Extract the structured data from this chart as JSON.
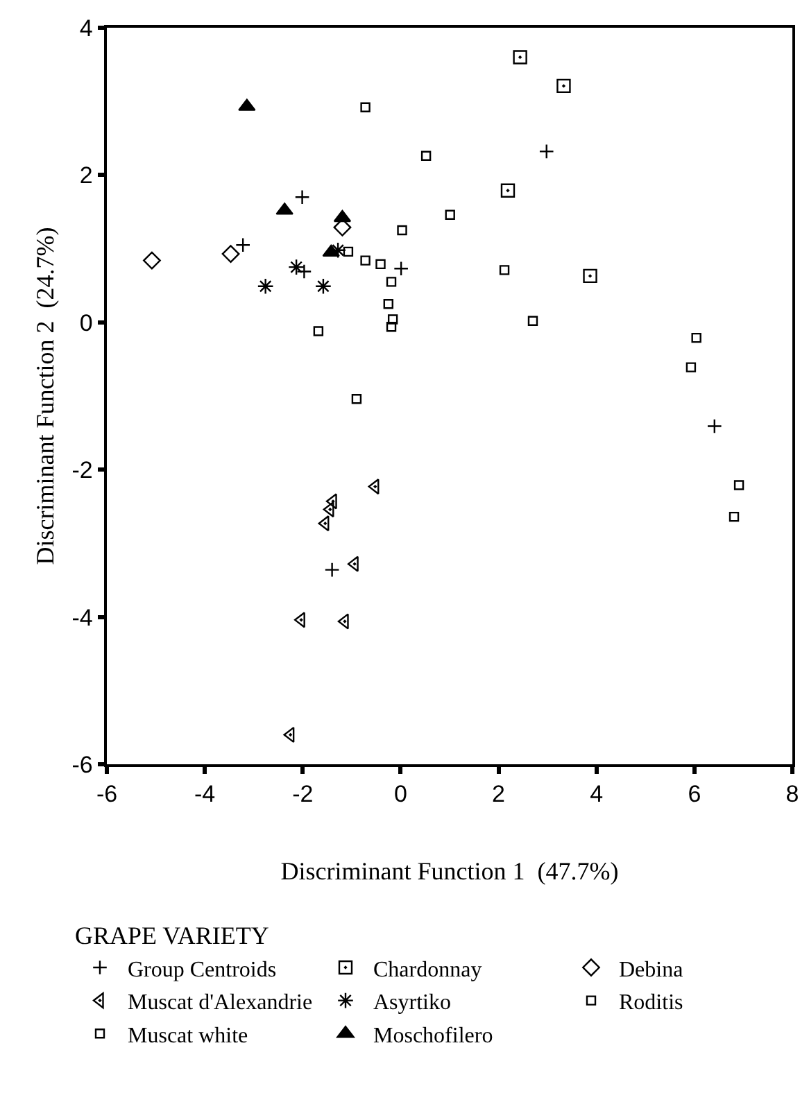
{
  "chart_data": {
    "type": "scatter",
    "xlabel": "Discriminant Function 1  (47.7%)",
    "ylabel": "Discriminant Function 2  (24.7%)",
    "legend_title": "GRAPE VARIETY",
    "legend": "bottom",
    "xlim": [
      -6,
      8
    ],
    "xticks": [
      -6,
      -4,
      -2,
      0,
      2,
      4,
      6,
      8
    ],
    "ylim": [
      -6,
      4
    ],
    "yticks": [
      -6,
      -4,
      -2,
      0,
      2,
      4
    ],
    "series": [
      {
        "name": "Group Centroids",
        "color": "#000000",
        "marker": "cross-thin",
        "x": [
          -3.22,
          -2.01,
          -1.97,
          0.01,
          2.98,
          6.41,
          -1.4
        ],
        "values": [
          1.05,
          1.7,
          0.69,
          0.73,
          2.32,
          -1.41,
          -3.36
        ]
      },
      {
        "name": "Chardonnay",
        "color": "#000000",
        "marker": "square-open-dot",
        "x": [
          2.44,
          3.33,
          2.19,
          3.87
        ],
        "values": [
          3.6,
          3.21,
          1.79,
          0.63
        ]
      },
      {
        "name": "Debina",
        "color": "#000000",
        "marker": "diamond-open",
        "x": [
          -5.08,
          -3.47,
          -1.19
        ],
        "values": [
          0.84,
          0.93,
          1.29
        ]
      },
      {
        "name": "Muscat d'Alexandrie",
        "color": "#000000",
        "marker": "triangle-left-open-dot",
        "x": [
          -0.52,
          -1.38,
          -1.44,
          -1.54,
          -0.94,
          -2.03,
          -1.14,
          -2.25
        ],
        "values": [
          -2.23,
          -2.43,
          -2.54,
          -2.73,
          -3.28,
          -4.04,
          -4.06,
          -5.6
        ]
      },
      {
        "name": "Asyrtiko",
        "color": "#000000",
        "marker": "cross",
        "x": [
          -2.76,
          -2.13,
          -1.58,
          -1.28
        ],
        "values": [
          0.49,
          0.75,
          0.49,
          0.98
        ]
      },
      {
        "name": "Roditis",
        "color": "#000000",
        "marker": "square-open",
        "x": [
          -0.72,
          0.03,
          -1.07,
          -0.72,
          -0.41,
          -0.19,
          -0.25,
          -0.16,
          -0.19,
          -1.68,
          -0.9,
          0.52,
          1.01,
          2.12,
          2.7
        ],
        "values": [
          2.92,
          1.25,
          0.96,
          0.84,
          0.79,
          0.55,
          0.25,
          0.04,
          -0.06,
          -0.12,
          -1.04,
          2.26,
          1.46,
          0.71,
          0.02
        ]
      },
      {
        "name": "Muscat white",
        "color": "#000000",
        "marker": "square-open",
        "x": [
          6.04,
          5.93,
          6.91,
          6.81
        ],
        "values": [
          -0.21,
          -0.61,
          -2.21,
          -2.64
        ]
      },
      {
        "name": "Moschofilero",
        "color": "#000000",
        "marker": "triangle-up",
        "x": [
          -3.14,
          -2.37,
          -1.19,
          -1.42
        ],
        "values": [
          2.93,
          1.52,
          1.42,
          0.95
        ]
      }
    ]
  }
}
